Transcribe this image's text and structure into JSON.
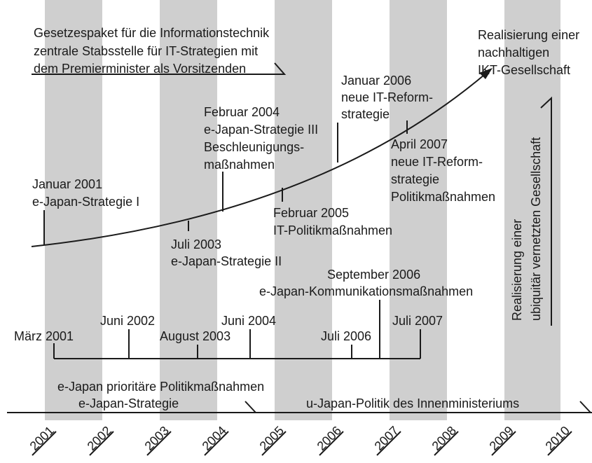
{
  "top_note": [
    "Gesetzespaket für die Informationstechnik",
    "zentrale Stabsstelle für IT-Strategien mit",
    "dem Premierminister als Vorsitzenden"
  ],
  "goal": [
    "Realisierung einer",
    "nachhaltigen",
    "IKT-Gesellschaft"
  ],
  "curve_events": [
    {
      "lines": [
        "Januar 2001",
        "e-Japan-Strategie I"
      ]
    },
    {
      "lines": [
        "Juli 2003",
        "e-Japan-Strategie II"
      ]
    },
    {
      "lines": [
        "Februar 2004",
        "e-Japan-Strategie III",
        "Beschleunigungs-",
        "maßnahmen"
      ]
    },
    {
      "lines": [
        "Februar 2005",
        "IT-Politikmaßnahmen"
      ]
    },
    {
      "lines": [
        "Januar 2006",
        "neue IT-Reform-",
        "strategie"
      ]
    },
    {
      "lines": [
        "April 2007",
        "neue IT-Reform-",
        "strategie",
        "Politikmaßnahmen"
      ]
    }
  ],
  "kommunikation": [
    "September 2006",
    "e-Japan-Kommunikationsmaßnahmen"
  ],
  "bracket_events": [
    "März 2001",
    "Juni 2002",
    "August 2003",
    "Juni 2004",
    "Juli 2006",
    "Juli 2007"
  ],
  "bracket_label": "e-Japan prioritäre Politikmaßnahmen",
  "phases": [
    "e-Japan-Strategie",
    "u-Japan-Politik des Innenministeriums"
  ],
  "vision": [
    "Realisierung einer",
    "ubiquitär vernetzten Gesellschaft"
  ],
  "years": [
    "2001",
    "2002",
    "2003",
    "2004",
    "2005",
    "2006",
    "2007",
    "2008",
    "2009",
    "2010"
  ]
}
